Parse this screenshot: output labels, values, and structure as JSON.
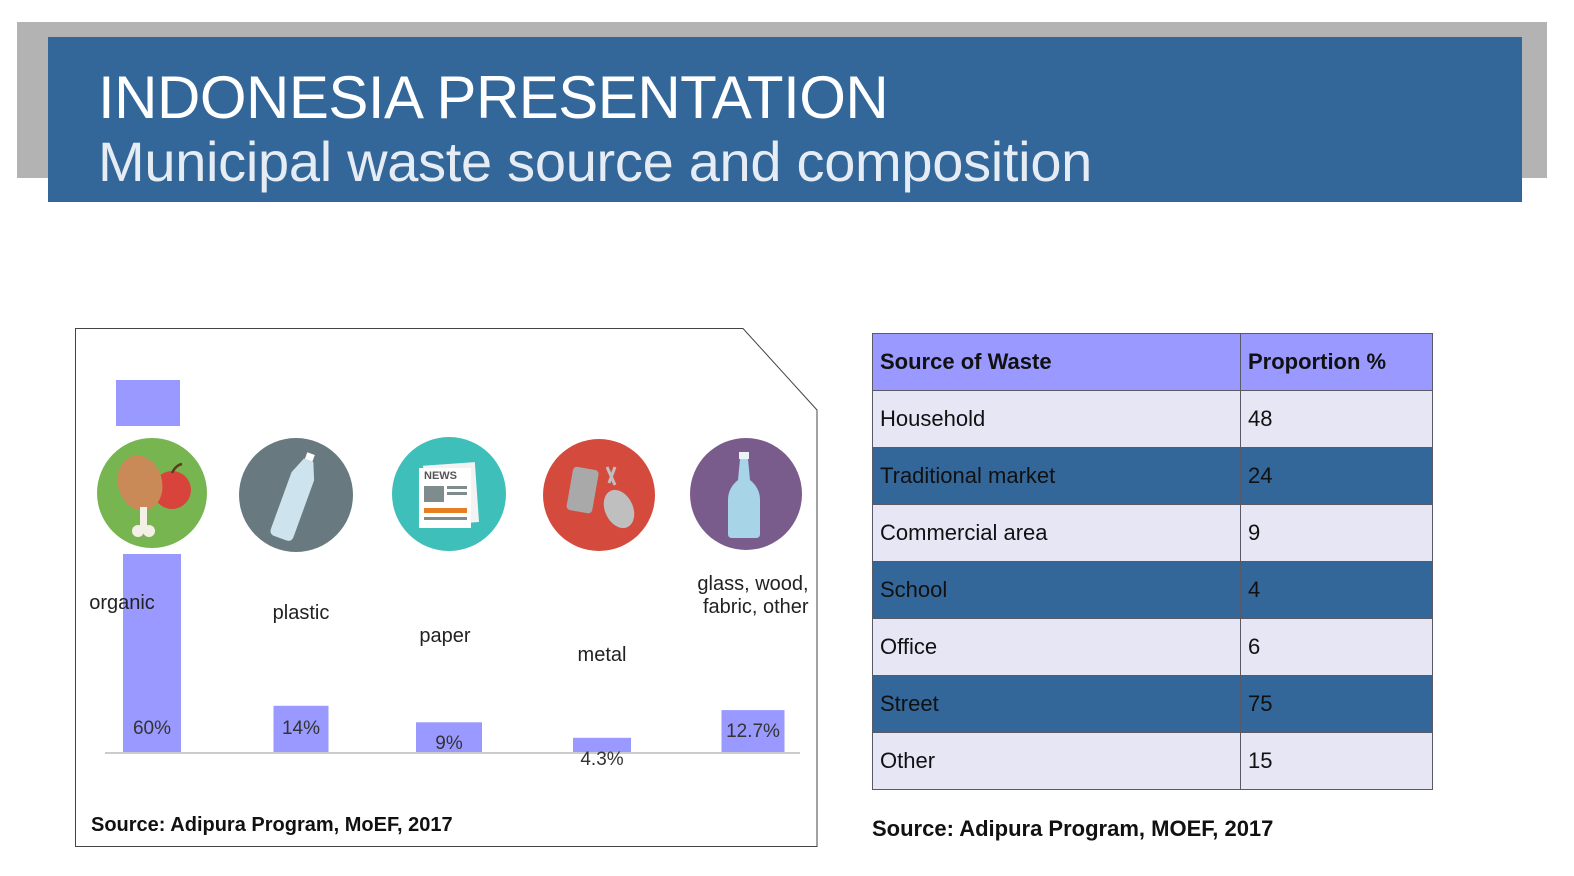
{
  "header": {
    "title": "INDONESIA PRESENTATION",
    "subtitle": "Municipal waste source and composition"
  },
  "colors": {
    "banner": "#336699",
    "bar": "#9999ff",
    "table_header": "#9999ff",
    "row_light": "#e6e6f5",
    "row_dark": "#336699"
  },
  "chart_data": {
    "type": "bar",
    "categories": [
      "organic",
      "plastic",
      "paper",
      "metal",
      "glass, wood, fabric, other"
    ],
    "values": [
      60,
      14,
      9,
      4.3,
      12.7
    ],
    "value_labels": [
      "60%",
      "14%",
      "9%",
      "4.3%",
      "12.7%"
    ],
    "icons": [
      "food-icon",
      "plastic-bottle-icon",
      "newspaper-icon",
      "cans-icon",
      "glass-bottle-icon"
    ],
    "icon_colors": [
      "#77b551",
      "#687a7f",
      "#3fbfb9",
      "#d44a3d",
      "#7a5c8c"
    ],
    "title": "",
    "xlabel": "",
    "ylabel": "",
    "grid": false,
    "legend": false
  },
  "chart_source": "Source: Adipura Program, MoEF, 2017",
  "table": {
    "headers": [
      "Source of Waste",
      "Proportion %"
    ],
    "rows": [
      [
        "Household",
        "48"
      ],
      [
        "Traditional market",
        "24"
      ],
      [
        "Commercial area",
        "9"
      ],
      [
        "School",
        "4"
      ],
      [
        "Office",
        "6"
      ],
      [
        "Street",
        "75"
      ],
      [
        "Other",
        "15"
      ]
    ]
  },
  "table_source": "Source: Adipura Program, MOEF, 2017"
}
